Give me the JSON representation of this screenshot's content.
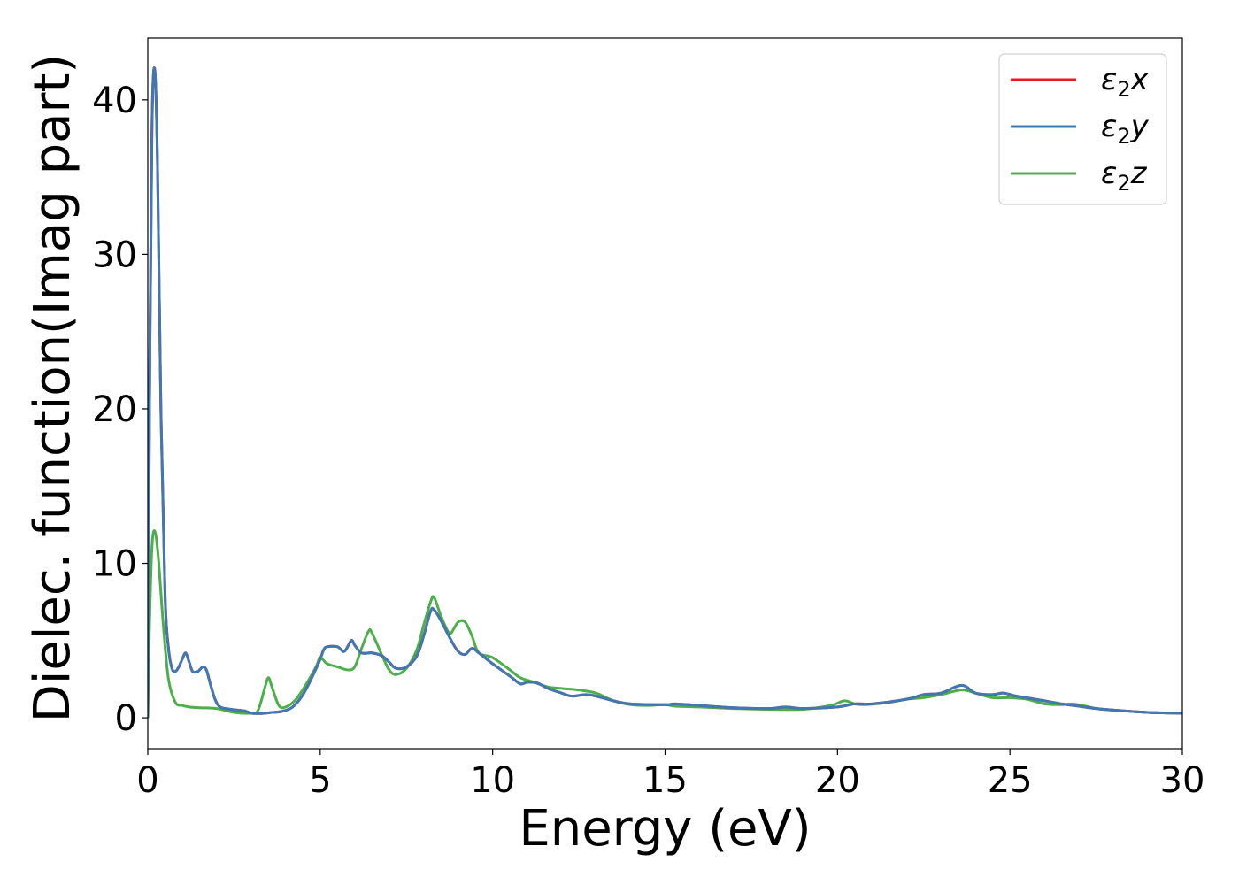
{
  "chart_data": {
    "type": "line",
    "xlabel": "Energy (eV)",
    "ylabel": "Dielec. function(Imag part)",
    "xlim": [
      0,
      30
    ],
    "ylim": [
      -2,
      44
    ],
    "xticks": [
      0,
      5,
      10,
      15,
      20,
      25,
      30
    ],
    "yticks": [
      0,
      10,
      20,
      30,
      40
    ],
    "grid": false,
    "legend_position": "top-right",
    "series": [
      {
        "name": "ε2x",
        "legend": {
          "base": "ε",
          "sub": "2",
          "suffix": "x"
        },
        "color": "#e41a1c",
        "points": [
          [
            0,
            0
          ],
          [
            0.05,
            20
          ],
          [
            0.12,
            38
          ],
          [
            0.2,
            42
          ],
          [
            0.28,
            36
          ],
          [
            0.38,
            20
          ],
          [
            0.5,
            8
          ],
          [
            0.6,
            4.5
          ],
          [
            0.7,
            3.2
          ],
          [
            0.8,
            3.0
          ],
          [
            0.9,
            3.3
          ],
          [
            1.0,
            3.8
          ],
          [
            1.1,
            4.2
          ],
          [
            1.2,
            3.6
          ],
          [
            1.3,
            3.0
          ],
          [
            1.45,
            3.0
          ],
          [
            1.6,
            3.3
          ],
          [
            1.7,
            3.1
          ],
          [
            1.8,
            2.3
          ],
          [
            1.95,
            1.2
          ],
          [
            2.1,
            0.7
          ],
          [
            2.4,
            0.55
          ],
          [
            2.8,
            0.45
          ],
          [
            3.0,
            0.3
          ],
          [
            3.3,
            0.28
          ],
          [
            3.6,
            0.35
          ],
          [
            3.9,
            0.42
          ],
          [
            4.2,
            0.7
          ],
          [
            4.5,
            1.5
          ],
          [
            4.8,
            2.8
          ],
          [
            5.0,
            3.8
          ],
          [
            5.1,
            4.4
          ],
          [
            5.2,
            4.6
          ],
          [
            5.5,
            4.6
          ],
          [
            5.7,
            4.3
          ],
          [
            5.9,
            5.0
          ],
          [
            6.0,
            4.7
          ],
          [
            6.2,
            4.2
          ],
          [
            6.5,
            4.2
          ],
          [
            6.8,
            4.0
          ],
          [
            7.0,
            3.6
          ],
          [
            7.2,
            3.2
          ],
          [
            7.5,
            3.3
          ],
          [
            7.8,
            4.0
          ],
          [
            8.0,
            5.3
          ],
          [
            8.2,
            6.9
          ],
          [
            8.3,
            7.0
          ],
          [
            8.5,
            6.3
          ],
          [
            8.8,
            5.0
          ],
          [
            9.0,
            4.3
          ],
          [
            9.2,
            4.1
          ],
          [
            9.4,
            4.5
          ],
          [
            9.6,
            4.2
          ],
          [
            10.0,
            3.5
          ],
          [
            10.5,
            2.7
          ],
          [
            10.8,
            2.2
          ],
          [
            11.0,
            2.3
          ],
          [
            11.3,
            2.25
          ],
          [
            11.6,
            1.9
          ],
          [
            12.0,
            1.6
          ],
          [
            12.3,
            1.4
          ],
          [
            12.7,
            1.5
          ],
          [
            13.0,
            1.4
          ],
          [
            13.5,
            1.1
          ],
          [
            14.0,
            0.9
          ],
          [
            15.0,
            0.85
          ],
          [
            15.3,
            0.9
          ],
          [
            16.0,
            0.8
          ],
          [
            17.0,
            0.65
          ],
          [
            18.0,
            0.6
          ],
          [
            18.5,
            0.7
          ],
          [
            19.0,
            0.6
          ],
          [
            20.0,
            0.7
          ],
          [
            20.5,
            0.9
          ],
          [
            21.0,
            0.9
          ],
          [
            22.0,
            1.2
          ],
          [
            22.5,
            1.5
          ],
          [
            23.0,
            1.6
          ],
          [
            23.6,
            2.1
          ],
          [
            24.0,
            1.6
          ],
          [
            24.5,
            1.5
          ],
          [
            24.8,
            1.6
          ],
          [
            25.2,
            1.4
          ],
          [
            26.0,
            1.1
          ],
          [
            26.5,
            0.9
          ],
          [
            27.0,
            0.75
          ],
          [
            27.5,
            0.6
          ],
          [
            28.0,
            0.5
          ],
          [
            29.0,
            0.35
          ],
          [
            30.0,
            0.3
          ]
        ]
      },
      {
        "name": "ε2y",
        "legend": {
          "base": "ε",
          "sub": "2",
          "suffix": "y"
        },
        "color": "#3f78b3",
        "points": [
          [
            0,
            0
          ],
          [
            0.05,
            20
          ],
          [
            0.12,
            38
          ],
          [
            0.2,
            42
          ],
          [
            0.28,
            36
          ],
          [
            0.38,
            20
          ],
          [
            0.5,
            8
          ],
          [
            0.6,
            4.5
          ],
          [
            0.7,
            3.2
          ],
          [
            0.8,
            3.0
          ],
          [
            0.9,
            3.3
          ],
          [
            1.0,
            3.8
          ],
          [
            1.1,
            4.2
          ],
          [
            1.2,
            3.6
          ],
          [
            1.3,
            3.0
          ],
          [
            1.45,
            3.0
          ],
          [
            1.6,
            3.3
          ],
          [
            1.7,
            3.1
          ],
          [
            1.8,
            2.3
          ],
          [
            1.95,
            1.2
          ],
          [
            2.1,
            0.7
          ],
          [
            2.4,
            0.55
          ],
          [
            2.8,
            0.45
          ],
          [
            3.0,
            0.3
          ],
          [
            3.3,
            0.28
          ],
          [
            3.6,
            0.35
          ],
          [
            3.9,
            0.42
          ],
          [
            4.2,
            0.7
          ],
          [
            4.5,
            1.5
          ],
          [
            4.8,
            2.8
          ],
          [
            5.0,
            3.8
          ],
          [
            5.1,
            4.4
          ],
          [
            5.2,
            4.6
          ],
          [
            5.5,
            4.6
          ],
          [
            5.7,
            4.3
          ],
          [
            5.9,
            5.0
          ],
          [
            6.0,
            4.7
          ],
          [
            6.2,
            4.2
          ],
          [
            6.5,
            4.2
          ],
          [
            6.8,
            4.0
          ],
          [
            7.0,
            3.6
          ],
          [
            7.2,
            3.2
          ],
          [
            7.5,
            3.3
          ],
          [
            7.8,
            4.0
          ],
          [
            8.0,
            5.3
          ],
          [
            8.2,
            6.9
          ],
          [
            8.3,
            7.0
          ],
          [
            8.5,
            6.3
          ],
          [
            8.8,
            5.0
          ],
          [
            9.0,
            4.3
          ],
          [
            9.2,
            4.1
          ],
          [
            9.4,
            4.5
          ],
          [
            9.6,
            4.2
          ],
          [
            10.0,
            3.5
          ],
          [
            10.5,
            2.7
          ],
          [
            10.8,
            2.2
          ],
          [
            11.0,
            2.3
          ],
          [
            11.3,
            2.25
          ],
          [
            11.6,
            1.9
          ],
          [
            12.0,
            1.6
          ],
          [
            12.3,
            1.4
          ],
          [
            12.7,
            1.5
          ],
          [
            13.0,
            1.4
          ],
          [
            13.5,
            1.1
          ],
          [
            14.0,
            0.9
          ],
          [
            15.0,
            0.85
          ],
          [
            15.3,
            0.9
          ],
          [
            16.0,
            0.8
          ],
          [
            17.0,
            0.65
          ],
          [
            18.0,
            0.6
          ],
          [
            18.5,
            0.7
          ],
          [
            19.0,
            0.6
          ],
          [
            20.0,
            0.7
          ],
          [
            20.5,
            0.9
          ],
          [
            21.0,
            0.9
          ],
          [
            22.0,
            1.2
          ],
          [
            22.5,
            1.5
          ],
          [
            23.0,
            1.6
          ],
          [
            23.6,
            2.1
          ],
          [
            24.0,
            1.6
          ],
          [
            24.5,
            1.5
          ],
          [
            24.8,
            1.6
          ],
          [
            25.2,
            1.4
          ],
          [
            26.0,
            1.1
          ],
          [
            26.5,
            0.9
          ],
          [
            27.0,
            0.75
          ],
          [
            27.5,
            0.6
          ],
          [
            28.0,
            0.5
          ],
          [
            29.0,
            0.35
          ],
          [
            30.0,
            0.3
          ]
        ]
      },
      {
        "name": "ε2z",
        "legend": {
          "base": "ε",
          "sub": "2",
          "suffix": "z"
        },
        "color": "#4daf4a",
        "points": [
          [
            0,
            0
          ],
          [
            0.05,
            6
          ],
          [
            0.12,
            11
          ],
          [
            0.2,
            12.1
          ],
          [
            0.3,
            10.5
          ],
          [
            0.45,
            6
          ],
          [
            0.6,
            2.5
          ],
          [
            0.8,
            1.0
          ],
          [
            1.0,
            0.8
          ],
          [
            1.2,
            0.7
          ],
          [
            1.5,
            0.65
          ],
          [
            2.0,
            0.6
          ],
          [
            2.5,
            0.35
          ],
          [
            3.0,
            0.3
          ],
          [
            3.2,
            0.5
          ],
          [
            3.4,
            2.0
          ],
          [
            3.5,
            2.6
          ],
          [
            3.6,
            2.0
          ],
          [
            3.8,
            0.8
          ],
          [
            4.0,
            0.7
          ],
          [
            4.3,
            1.2
          ],
          [
            4.6,
            2.2
          ],
          [
            4.9,
            3.4
          ],
          [
            5.0,
            3.9
          ],
          [
            5.2,
            3.5
          ],
          [
            5.5,
            3.3
          ],
          [
            5.8,
            3.1
          ],
          [
            6.0,
            3.3
          ],
          [
            6.2,
            4.5
          ],
          [
            6.4,
            5.6
          ],
          [
            6.5,
            5.5
          ],
          [
            6.8,
            4.0
          ],
          [
            7.0,
            3.1
          ],
          [
            7.2,
            2.8
          ],
          [
            7.5,
            3.2
          ],
          [
            7.8,
            4.4
          ],
          [
            8.0,
            6.0
          ],
          [
            8.2,
            7.5
          ],
          [
            8.3,
            7.8
          ],
          [
            8.5,
            6.6
          ],
          [
            8.7,
            5.6
          ],
          [
            8.8,
            5.5
          ],
          [
            9.0,
            6.2
          ],
          [
            9.2,
            6.2
          ],
          [
            9.4,
            5.3
          ],
          [
            9.6,
            4.2
          ],
          [
            10.0,
            3.9
          ],
          [
            10.5,
            3.1
          ],
          [
            10.8,
            2.6
          ],
          [
            11.2,
            2.3
          ],
          [
            11.6,
            2.0
          ],
          [
            12.0,
            1.9
          ],
          [
            12.5,
            1.8
          ],
          [
            13.0,
            1.6
          ],
          [
            13.5,
            1.1
          ],
          [
            14.0,
            0.85
          ],
          [
            14.5,
            0.8
          ],
          [
            15.0,
            0.85
          ],
          [
            15.3,
            0.75
          ],
          [
            16.0,
            0.7
          ],
          [
            17.0,
            0.6
          ],
          [
            18.0,
            0.55
          ],
          [
            19.0,
            0.55
          ],
          [
            19.8,
            0.8
          ],
          [
            20.2,
            1.1
          ],
          [
            20.5,
            0.9
          ],
          [
            20.8,
            0.85
          ],
          [
            21.5,
            1.0
          ],
          [
            22.0,
            1.2
          ],
          [
            22.5,
            1.3
          ],
          [
            23.0,
            1.5
          ],
          [
            23.6,
            1.8
          ],
          [
            24.0,
            1.6
          ],
          [
            24.5,
            1.3
          ],
          [
            25.0,
            1.3
          ],
          [
            25.5,
            1.2
          ],
          [
            26.0,
            0.9
          ],
          [
            26.5,
            0.85
          ],
          [
            26.8,
            0.9
          ],
          [
            27.2,
            0.75
          ],
          [
            27.5,
            0.6
          ],
          [
            28.0,
            0.5
          ],
          [
            29.0,
            0.35
          ],
          [
            30.0,
            0.3
          ]
        ]
      }
    ]
  }
}
